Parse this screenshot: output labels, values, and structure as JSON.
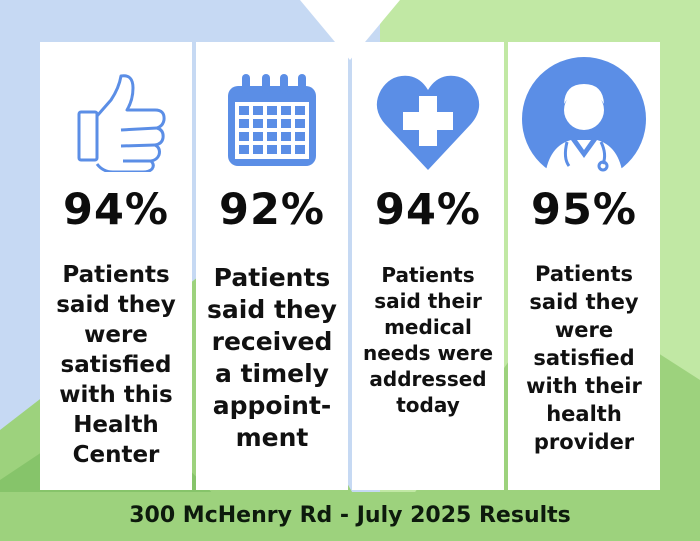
{
  "colors": {
    "blue_light": "#c6d9f3",
    "green_light": "#c1e8a4",
    "green_mid": "#9dd27d",
    "green_dark": "#86c46a",
    "icon_blue": "#5b8ee6",
    "card": "#ffffff"
  },
  "cards": [
    {
      "icon": "thumbs-up-icon",
      "percent": "94%",
      "description": "Patients said they were satisfied with this Health Center"
    },
    {
      "icon": "calendar-icon",
      "percent": "92%",
      "description": "Patients said they received a timely appoint-ment"
    },
    {
      "icon": "heart-cross-icon",
      "percent": "94%",
      "description": "Patients said their medical needs were addressed today"
    },
    {
      "icon": "doctor-icon",
      "percent": "95%",
      "description": "Patients said they were satisfied with their health provider"
    }
  ],
  "footer": {
    "text": "300 McHenry Rd - July 2025 Results"
  }
}
